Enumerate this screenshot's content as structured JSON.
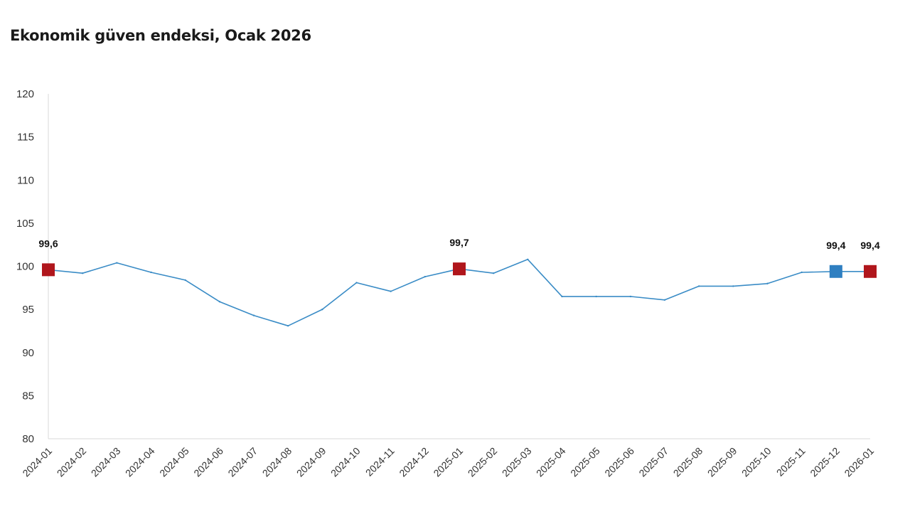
{
  "chart_data": {
    "type": "line",
    "title": "Ekonomik güven endeksi, Ocak 2026",
    "xlabel": "",
    "ylabel": "",
    "ylim": [
      80,
      120
    ],
    "yticks": [
      80,
      85,
      90,
      95,
      100,
      105,
      110,
      115,
      120
    ],
    "grid": false,
    "line_color": "#3a8cc6",
    "marker_red": "#b0161c",
    "marker_blue": "#2f7fc1",
    "categories": [
      "2024-01",
      "2024-02",
      "2024-03",
      "2024-04",
      "2024-05",
      "2024-06",
      "2024-07",
      "2024-08",
      "2024-09",
      "2024-10",
      "2024-11",
      "2024-12",
      "2025-01",
      "2025-02",
      "2025-03",
      "2025-04",
      "2025-05",
      "2025-06",
      "2025-07",
      "2025-08",
      "2025-09",
      "2025-10",
      "2025-11",
      "2025-12",
      "2026-01"
    ],
    "series": [
      {
        "name": "Ekonomik güven endeksi",
        "values": [
          99.6,
          99.2,
          100.4,
          99.3,
          98.4,
          95.9,
          94.3,
          93.1,
          95.0,
          98.1,
          97.1,
          98.8,
          99.7,
          99.2,
          100.8,
          96.5,
          96.5,
          96.5,
          96.1,
          97.7,
          97.7,
          98.0,
          99.3,
          99.4,
          99.4
        ]
      }
    ],
    "markers": [
      {
        "index": 0,
        "color": "red",
        "label": "99,6"
      },
      {
        "index": 12,
        "color": "red",
        "label": "99,7"
      },
      {
        "index": 23,
        "color": "blue",
        "label": "99,4"
      },
      {
        "index": 24,
        "color": "red",
        "label": "99,4"
      }
    ]
  }
}
